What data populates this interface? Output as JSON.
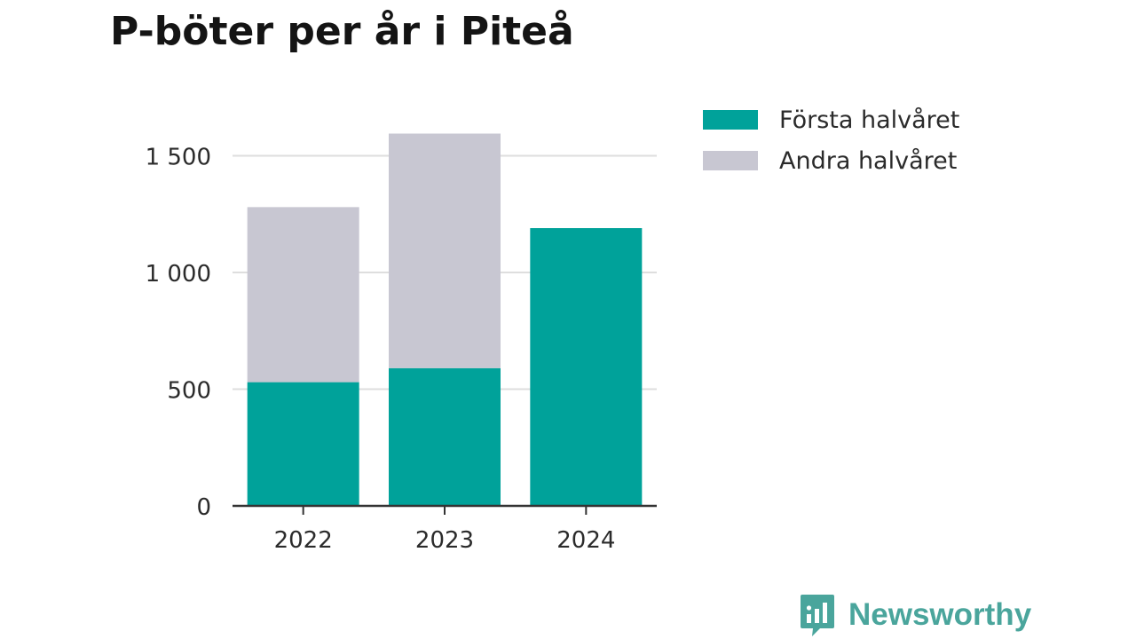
{
  "colors": {
    "first_half": "#00a29a",
    "second_half": "#c8c7d2",
    "gridline": "#dedede",
    "axis": "#333333",
    "text": "#2b2b2b",
    "brand": "#4aa59c"
  },
  "chart_data": {
    "type": "bar",
    "stacked": true,
    "title": "P-böter per år i Piteå",
    "xlabel": "",
    "ylabel": "",
    "categories": [
      "2022",
      "2023",
      "2024"
    ],
    "series": [
      {
        "name": "Första halvåret",
        "values": [
          530,
          590,
          1190
        ]
      },
      {
        "name": "Andra halvåret",
        "values": [
          750,
          1005,
          0
        ]
      }
    ],
    "ylim": [
      0,
      1650
    ],
    "yticks": [
      0,
      500,
      1000,
      1500
    ],
    "ytick_labels": [
      "0",
      "500",
      "1 000",
      "1 500"
    ],
    "grid": true,
    "legend_position": "top-right"
  },
  "legend": {
    "items": [
      {
        "label": "Första halvåret",
        "color": "#00a29a"
      },
      {
        "label": "Andra halvåret",
        "color": "#c8c7d2"
      }
    ]
  },
  "brand": {
    "name": "Newsworthy",
    "logo_icon": "bar-chart-speech-bubble-icon"
  }
}
